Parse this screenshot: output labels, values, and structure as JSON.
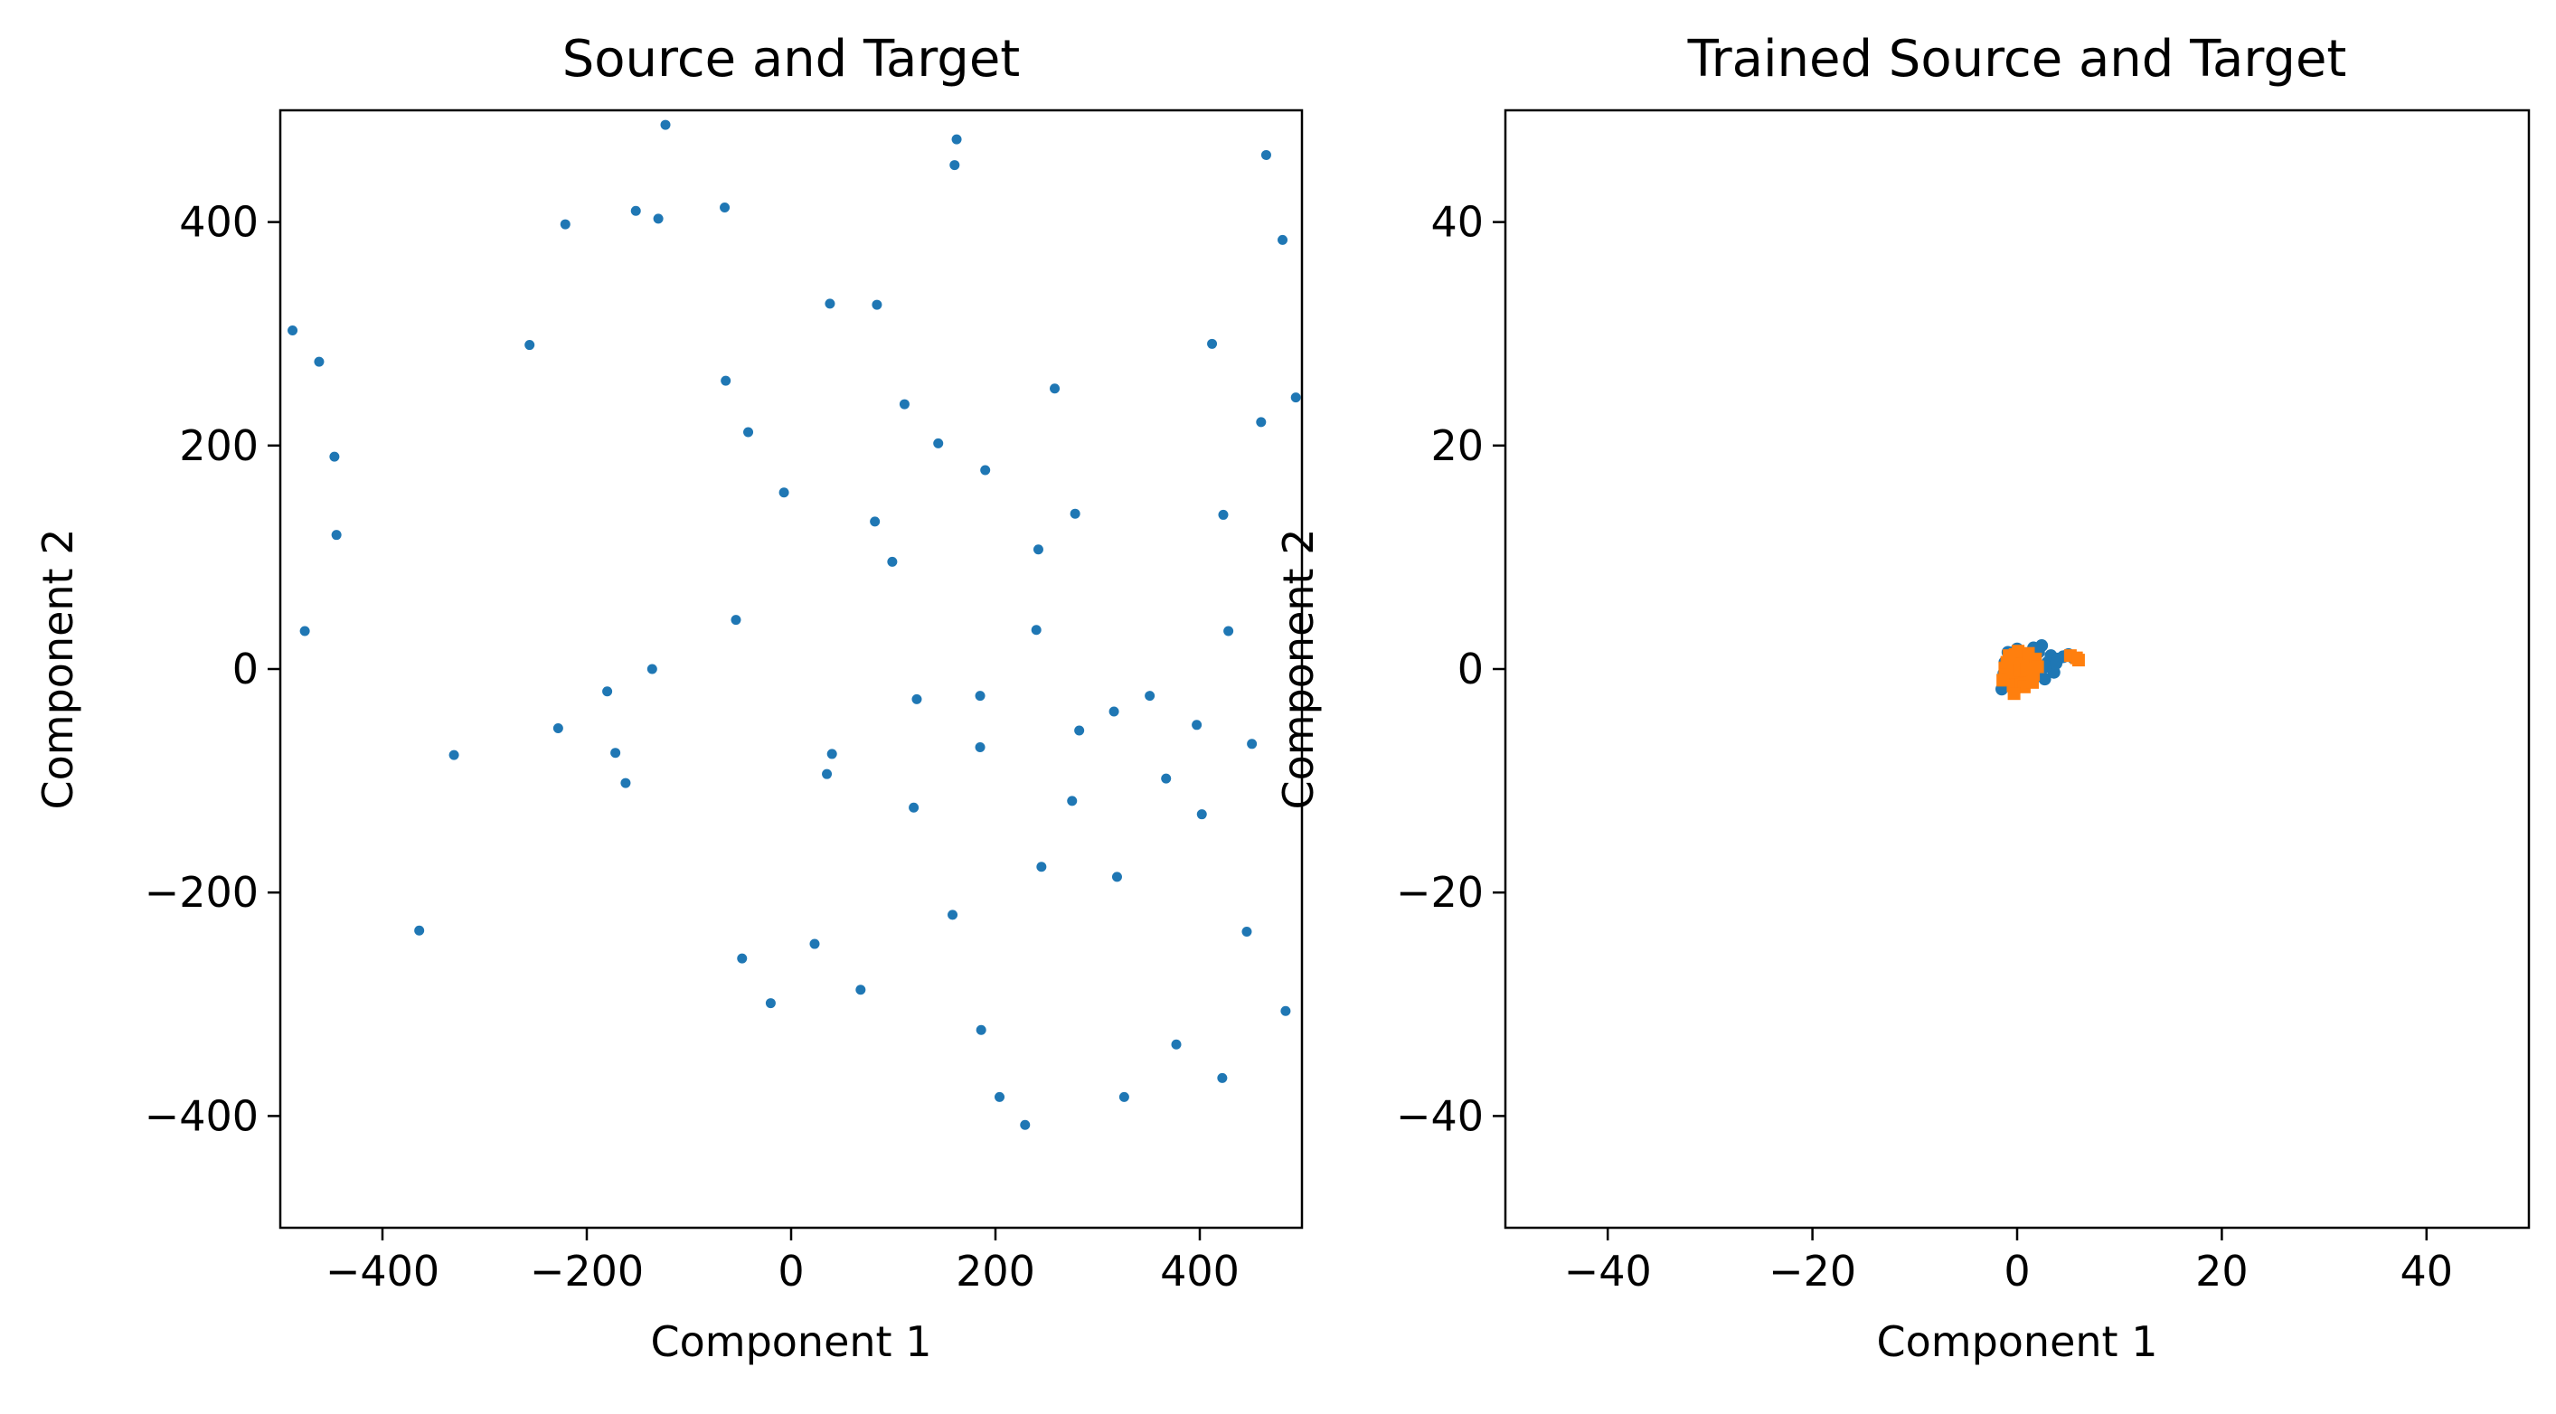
{
  "chart_data": [
    {
      "type": "scatter",
      "title": "Source and Target",
      "xlabel": "Component 1",
      "ylabel": "Component 2",
      "xlim": [
        -500,
        500
      ],
      "ylim": [
        -500,
        500
      ],
      "xticks": [
        -400,
        -200,
        0,
        200,
        400
      ],
      "yticks": [
        -400,
        -200,
        0,
        200,
        400
      ],
      "grid": false,
      "series": [
        {
          "color": "#1f77b4",
          "marker": "circle",
          "points": [
            [
              -488,
              303
            ],
            [
              -462,
              275
            ],
            [
              -447,
              190
            ],
            [
              -445,
              120
            ],
            [
              -476,
              34
            ],
            [
              -364,
              -234
            ],
            [
              -330,
              -77
            ],
            [
              -256,
              290
            ],
            [
              -228,
              -53
            ],
            [
              -221,
              398
            ],
            [
              -180,
              -20
            ],
            [
              -172,
              -75
            ],
            [
              -162,
              -102
            ],
            [
              -152,
              410
            ],
            [
              -130,
              403
            ],
            [
              -136,
              0
            ],
            [
              -123,
              487
            ],
            [
              -65,
              413
            ],
            [
              -64,
              258
            ],
            [
              -42,
              212
            ],
            [
              -54,
              44
            ],
            [
              -48,
              -259
            ],
            [
              -20,
              -299
            ],
            [
              -7,
              158
            ],
            [
              23,
              -246
            ],
            [
              35,
              -94
            ],
            [
              40,
              -76
            ],
            [
              38,
              327
            ],
            [
              68,
              -287
            ],
            [
              82,
              132
            ],
            [
              84,
              326
            ],
            [
              99,
              96
            ],
            [
              111,
              237
            ],
            [
              120,
              -124
            ],
            [
              123,
              -27
            ],
            [
              144,
              202
            ],
            [
              158,
              -220
            ],
            [
              160,
              451
            ],
            [
              162,
              474
            ],
            [
              185,
              -24
            ],
            [
              185,
              -70
            ],
            [
              186,
              -323
            ],
            [
              190,
              178
            ],
            [
              204,
              -383
            ],
            [
              229,
              -408
            ],
            [
              240,
              35
            ],
            [
              242,
              107
            ],
            [
              245,
              -177
            ],
            [
              258,
              251
            ],
            [
              275,
              -118
            ],
            [
              278,
              139
            ],
            [
              282,
              -55
            ],
            [
              316,
              -38
            ],
            [
              319,
              -186
            ],
            [
              326,
              -383
            ],
            [
              351,
              -24
            ],
            [
              367,
              -98
            ],
            [
              377,
              -336
            ],
            [
              397,
              -50
            ],
            [
              402,
              -130
            ],
            [
              412,
              291
            ],
            [
              422,
              -366
            ],
            [
              423,
              138
            ],
            [
              428,
              34
            ],
            [
              446,
              -235
            ],
            [
              451,
              -67
            ],
            [
              460,
              221
            ],
            [
              465,
              460
            ],
            [
              481,
              384
            ],
            [
              484,
              -306
            ],
            [
              494,
              243
            ]
          ]
        }
      ]
    },
    {
      "type": "scatter",
      "title": "Trained Source and Target",
      "xlabel": "Component 1",
      "ylabel": "Component 2",
      "xlim": [
        -50,
        50
      ],
      "ylim": [
        -50,
        50
      ],
      "xticks": [
        -40,
        -20,
        0,
        20,
        40
      ],
      "yticks": [
        -40,
        -20,
        0,
        20,
        40
      ],
      "grid": false,
      "series": [
        {
          "color": "#1f77b4",
          "marker": "circle",
          "points": [
            [
              -1.5,
              -1.8
            ],
            [
              -1.2,
              0.6
            ],
            [
              -0.9,
              1.5
            ],
            [
              -0.6,
              -0.9
            ],
            [
              -0.3,
              0.3
            ],
            [
              0.0,
              1.8
            ],
            [
              0.3,
              -1.2
            ],
            [
              0.6,
              0.9
            ],
            [
              0.9,
              -0.3
            ],
            [
              1.2,
              1.2
            ],
            [
              1.5,
              -0.6
            ],
            [
              1.8,
              0.3
            ],
            [
              2.1,
              1.5
            ],
            [
              2.4,
              2.1
            ],
            [
              2.7,
              -0.9
            ],
            [
              3.0,
              0.6
            ],
            [
              3.3,
              1.2
            ],
            [
              3.6,
              -0.3
            ],
            [
              4.0,
              0.9
            ],
            [
              4.5,
              1.1
            ],
            [
              5.0,
              1.3
            ],
            [
              5.5,
              1.0
            ],
            [
              -0.8,
              -1.5
            ],
            [
              0.2,
              -1.6
            ],
            [
              1.6,
              1.9
            ],
            [
              -1.3,
              -0.4
            ],
            [
              0.5,
              0.0
            ],
            [
              2.0,
              -0.2
            ],
            [
              2.8,
              0.2
            ],
            [
              3.8,
              0.5
            ]
          ]
        },
        {
          "color": "#ff7f0e",
          "marker": "square",
          "points": [
            [
              -1.2,
              0.1
            ],
            [
              -0.9,
              -0.9
            ],
            [
              -0.6,
              0.8
            ],
            [
              -0.4,
              -1.5
            ],
            [
              -0.2,
              1.3
            ],
            [
              0.0,
              -0.4
            ],
            [
              0.2,
              0.5
            ],
            [
              0.4,
              -1.1
            ],
            [
              0.6,
              1.1
            ],
            [
              0.8,
              -0.2
            ],
            [
              1.0,
              0.7
            ],
            [
              1.2,
              -0.8
            ],
            [
              1.4,
              0.3
            ],
            [
              1.6,
              -0.5
            ],
            [
              1.8,
              0.9
            ],
            [
              -1.0,
              0.6
            ],
            [
              -0.5,
              -0.3
            ],
            [
              0.1,
              1.6
            ],
            [
              0.7,
              -1.6
            ],
            [
              1.1,
              1.4
            ],
            [
              -0.8,
              1.2
            ],
            [
              0.3,
              -0.1
            ],
            [
              2.0,
              0.2
            ],
            [
              -0.3,
              -2.2
            ],
            [
              0.9,
              0.0
            ],
            [
              5.2,
              1.2
            ],
            [
              5.8,
              1.0
            ],
            [
              6.0,
              0.8
            ],
            [
              -1.4,
              -1.0
            ],
            [
              1.5,
              -1.2
            ]
          ]
        }
      ]
    }
  ]
}
